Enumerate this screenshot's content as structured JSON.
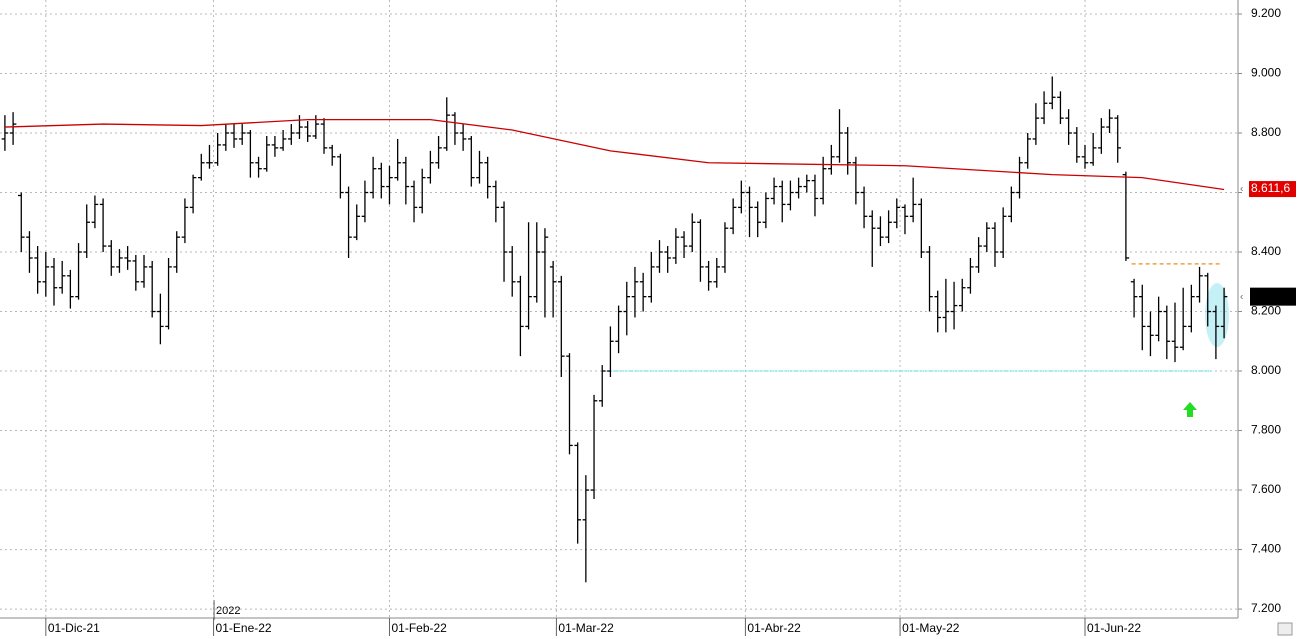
{
  "chart_data": {
    "type": "ohlc",
    "year_label": "2022",
    "xlim": [
      -0.6,
      150.7
    ],
    "ylim": [
      7170,
      9247
    ],
    "xticks": [
      {
        "value": 5,
        "label": "01-Dic-21"
      },
      {
        "value": 25.5,
        "label": "01-Ene-22"
      },
      {
        "value": 47,
        "label": "01-Feb-22"
      },
      {
        "value": 67.4,
        "label": "01-Mar-22"
      },
      {
        "value": 90.5,
        "label": "01-Abr-22"
      },
      {
        "value": 109.4,
        "label": "01-May-22"
      },
      {
        "value": 132,
        "label": "01-Jun-22"
      }
    ],
    "yticks": [
      {
        "value": 7200,
        "label": "7.200"
      },
      {
        "value": 7400,
        "label": "7.400"
      },
      {
        "value": 7600,
        "label": "7.600"
      },
      {
        "value": 7800,
        "label": "7.800"
      },
      {
        "value": 8000,
        "label": "8.000"
      },
      {
        "value": 8200,
        "label": "8.200"
      },
      {
        "value": 8400,
        "label": "8.400"
      },
      {
        "value": 8600,
        "label": "8.600"
      },
      {
        "value": 8800,
        "label": "8.800"
      },
      {
        "value": 9000,
        "label": "9.000"
      },
      {
        "value": 9200,
        "label": "9.200"
      }
    ],
    "grid": true,
    "bar_color": "#000000",
    "ohlc": [
      [
        8780,
        8860,
        8740,
        8800
      ],
      [
        8800,
        8870,
        8760,
        8830
      ],
      [
        8590,
        8600,
        8400,
        8450
      ],
      [
        8450,
        8470,
        8330,
        8380
      ],
      [
        8380,
        8420,
        8260,
        8300
      ],
      [
        8300,
        8400,
        8250,
        8350
      ],
      [
        8350,
        8380,
        8220,
        8280
      ],
      [
        8280,
        8370,
        8260,
        8320
      ],
      [
        8320,
        8340,
        8210,
        8250
      ],
      [
        8250,
        8430,
        8240,
        8400
      ],
      [
        8400,
        8560,
        8380,
        8500
      ],
      [
        8500,
        8590,
        8480,
        8560
      ],
      [
        8560,
        8580,
        8400,
        8420
      ],
      [
        8420,
        8440,
        8320,
        8350
      ],
      [
        8350,
        8410,
        8330,
        8380
      ],
      [
        8380,
        8420,
        8340,
        8370
      ],
      [
        8370,
        8390,
        8270,
        8300
      ],
      [
        8300,
        8390,
        8280,
        8350
      ],
      [
        8350,
        8370,
        8180,
        8200
      ],
      [
        8200,
        8260,
        8090,
        8150
      ],
      [
        8150,
        8380,
        8140,
        8350
      ],
      [
        8350,
        8470,
        8330,
        8450
      ],
      [
        8450,
        8580,
        8430,
        8550
      ],
      [
        8550,
        8660,
        8530,
        8650
      ],
      [
        8650,
        8730,
        8640,
        8700
      ],
      [
        8700,
        8760,
        8680,
        8700
      ],
      [
        8700,
        8800,
        8690,
        8760
      ],
      [
        8760,
        8830,
        8740,
        8800
      ],
      [
        8800,
        8830,
        8750,
        8780
      ],
      [
        8780,
        8830,
        8760,
        8800
      ],
      [
        8800,
        8810,
        8650,
        8700
      ],
      [
        8700,
        8720,
        8650,
        8680
      ],
      [
        8680,
        8790,
        8670,
        8760
      ],
      [
        8760,
        8790,
        8720,
        8750
      ],
      [
        8750,
        8810,
        8740,
        8780
      ],
      [
        8780,
        8830,
        8760,
        8800
      ],
      [
        8800,
        8860,
        8780,
        8820
      ],
      [
        8820,
        8840,
        8770,
        8790
      ],
      [
        8790,
        8860,
        8780,
        8830
      ],
      [
        8830,
        8850,
        8730,
        8750
      ],
      [
        8750,
        8760,
        8690,
        8720
      ],
      [
        8720,
        8730,
        8580,
        8600
      ],
      [
        8600,
        8620,
        8380,
        8450
      ],
      [
        8450,
        8560,
        8440,
        8520
      ],
      [
        8520,
        8640,
        8500,
        8600
      ],
      [
        8600,
        8720,
        8580,
        8680
      ],
      [
        8680,
        8700,
        8580,
        8620
      ],
      [
        8620,
        8690,
        8560,
        8650
      ],
      [
        8650,
        8780,
        8640,
        8700
      ],
      [
        8700,
        8720,
        8560,
        8620
      ],
      [
        8620,
        8640,
        8500,
        8550
      ],
      [
        8550,
        8680,
        8530,
        8650
      ],
      [
        8650,
        8740,
        8630,
        8700
      ],
      [
        8700,
        8790,
        8680,
        8750
      ],
      [
        8750,
        8920,
        8740,
        8860
      ],
      [
        8860,
        8870,
        8760,
        8800
      ],
      [
        8800,
        8830,
        8740,
        8780
      ],
      [
        8780,
        8790,
        8620,
        8650
      ],
      [
        8650,
        8740,
        8630,
        8700
      ],
      [
        8700,
        8720,
        8580,
        8620
      ],
      [
        8620,
        8640,
        8500,
        8550
      ],
      [
        8550,
        8570,
        8300,
        8400
      ],
      [
        8400,
        8420,
        8250,
        8300
      ],
      [
        8300,
        8320,
        8050,
        8150
      ],
      [
        8150,
        8500,
        8140,
        8250
      ],
      [
        8250,
        8500,
        8230,
        8400
      ],
      [
        8400,
        8480,
        8180,
        8450
      ],
      [
        8350,
        8370,
        8180,
        8300
      ],
      [
        8300,
        8320,
        7980,
        8050
      ],
      [
        8050,
        8060,
        7720,
        7750
      ],
      [
        7750,
        7760,
        7420,
        7500
      ],
      [
        7500,
        7650,
        7290,
        7600
      ],
      [
        7600,
        7920,
        7570,
        7900
      ],
      [
        7900,
        8020,
        7880,
        8000
      ],
      [
        8000,
        8150,
        7980,
        8100
      ],
      [
        8100,
        8220,
        8060,
        8200
      ],
      [
        8200,
        8300,
        8120,
        8250
      ],
      [
        8250,
        8350,
        8180,
        8300
      ],
      [
        8300,
        8330,
        8200,
        8250
      ],
      [
        8250,
        8400,
        8230,
        8350
      ],
      [
        8350,
        8440,
        8330,
        8400
      ],
      [
        8400,
        8420,
        8330,
        8380
      ],
      [
        8380,
        8480,
        8360,
        8450
      ],
      [
        8450,
        8470,
        8380,
        8420
      ],
      [
        8420,
        8530,
        8400,
        8500
      ],
      [
        8500,
        8510,
        8300,
        8350
      ],
      [
        8350,
        8370,
        8270,
        8300
      ],
      [
        8300,
        8380,
        8280,
        8350
      ],
      [
        8350,
        8500,
        8330,
        8480
      ],
      [
        8480,
        8580,
        8460,
        8550
      ],
      [
        8550,
        8640,
        8530,
        8600
      ],
      [
        8600,
        8620,
        8450,
        8550
      ],
      [
        8550,
        8570,
        8450,
        8500
      ],
      [
        8500,
        8600,
        8480,
        8580
      ],
      [
        8580,
        8650,
        8560,
        8620
      ],
      [
        8620,
        8640,
        8500,
        8560
      ],
      [
        8560,
        8640,
        8540,
        8600
      ],
      [
        8600,
        8650,
        8580,
        8620
      ],
      [
        8620,
        8660,
        8600,
        8640
      ],
      [
        8640,
        8660,
        8520,
        8580
      ],
      [
        8580,
        8720,
        8560,
        8680
      ],
      [
        8680,
        8760,
        8660,
        8720
      ],
      [
        8720,
        8880,
        8700,
        8800
      ],
      [
        8800,
        8820,
        8660,
        8700
      ],
      [
        8700,
        8720,
        8560,
        8600
      ],
      [
        8600,
        8620,
        8480,
        8520
      ],
      [
        8520,
        8540,
        8350,
        8480
      ],
      [
        8480,
        8520,
        8420,
        8450
      ],
      [
        8450,
        8540,
        8430,
        8500
      ],
      [
        8500,
        8580,
        8480,
        8550
      ],
      [
        8550,
        8560,
        8460,
        8520
      ],
      [
        8520,
        8650,
        8500,
        8560
      ],
      [
        8560,
        8580,
        8380,
        8400
      ],
      [
        8400,
        8420,
        8200,
        8250
      ],
      [
        8250,
        8270,
        8130,
        8180
      ],
      [
        8180,
        8310,
        8130,
        8200
      ],
      [
        8200,
        8300,
        8140,
        8220
      ],
      [
        8220,
        8310,
        8200,
        8280
      ],
      [
        8280,
        8380,
        8260,
        8350
      ],
      [
        8350,
        8450,
        8330,
        8420
      ],
      [
        8420,
        8500,
        8400,
        8480
      ],
      [
        8480,
        8500,
        8350,
        8400
      ],
      [
        8400,
        8550,
        8380,
        8520
      ],
      [
        8520,
        8620,
        8500,
        8600
      ],
      [
        8600,
        8720,
        8580,
        8700
      ],
      [
        8700,
        8800,
        8680,
        8780
      ],
      [
        8780,
        8900,
        8760,
        8850
      ],
      [
        8850,
        8940,
        8830,
        8900
      ],
      [
        8900,
        8990,
        8880,
        8920
      ],
      [
        8920,
        8940,
        8830,
        8850
      ],
      [
        8850,
        8880,
        8760,
        8800
      ],
      [
        8800,
        8820,
        8700,
        8720
      ],
      [
        8720,
        8760,
        8680,
        8700
      ],
      [
        8700,
        8800,
        8690,
        8750
      ],
      [
        8750,
        8850,
        8730,
        8820
      ],
      [
        8820,
        8880,
        8800,
        8850
      ],
      [
        8850,
        8860,
        8700,
        8750
      ],
      [
        8660,
        8670,
        8370,
        8380
      ],
      [
        8300,
        8310,
        8180,
        8250
      ],
      [
        8250,
        8290,
        8070,
        8150
      ],
      [
        8150,
        8200,
        8050,
        8120
      ],
      [
        8120,
        8250,
        8100,
        8200
      ],
      [
        8200,
        8220,
        8040,
        8100
      ],
      [
        8100,
        8230,
        8030,
        8080
      ],
      [
        8080,
        8280,
        8070,
        8150
      ],
      [
        8150,
        8290,
        8130,
        8250
      ],
      [
        8250,
        8350,
        8230,
        8320
      ],
      [
        8320,
        8330,
        8150,
        8200
      ],
      [
        8200,
        8220,
        8040,
        8150
      ],
      [
        8150,
        8280,
        8110,
        8250
      ]
    ],
    "moving_average": {
      "color": "#cc0000",
      "x": [
        0,
        12,
        24,
        37,
        52,
        62,
        74,
        86,
        110,
        128,
        139,
        149
      ],
      "values": [
        8820,
        8830,
        8825,
        8845,
        8845,
        8810,
        8740,
        8700,
        8690,
        8660,
        8650,
        8610
      ]
    },
    "ma_label": {
      "value": 8611.6,
      "label": "8.611,6",
      "color": "#e00000"
    },
    "last_price": {
      "value": 8250,
      "color": "#000000"
    },
    "levels": [
      {
        "value": 8360,
        "x": [
          137.7,
          148.5
        ],
        "color": "#f0a040",
        "dash": "4,3"
      },
      {
        "value": 8000,
        "x": [
          74,
          147.5
        ],
        "color": "#80e8f0",
        "dash": "2,1"
      }
    ]
  }
}
